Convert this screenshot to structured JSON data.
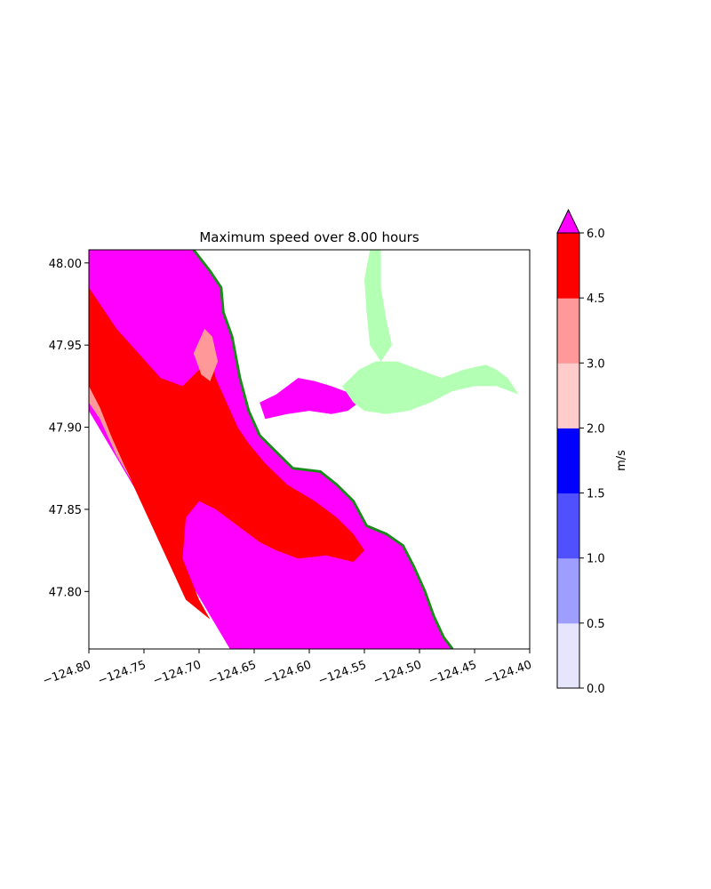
{
  "chart_data": {
    "type": "heatmap",
    "title": "Maximum speed over 8.00 hours",
    "xlim": [
      -124.8,
      -124.4
    ],
    "ylim": [
      47.765,
      48.008
    ],
    "x_ticks": [
      -124.8,
      -124.75,
      -124.7,
      -124.65,
      -124.6,
      -124.55,
      -124.5,
      -124.45,
      -124.4
    ],
    "x_tick_labels": [
      "−124.80",
      "−124.75",
      "−124.70",
      "−124.65",
      "−124.60",
      "−124.55",
      "−124.50",
      "−124.45",
      "−124.40"
    ],
    "y_ticks": [
      47.8,
      47.85,
      47.9,
      47.95,
      48.0
    ],
    "y_tick_labels": [
      "47.80",
      "47.85",
      "47.90",
      "47.95",
      "48.00"
    ],
    "colorbar": {
      "label": "m/s",
      "levels": [
        0.0,
        0.5,
        1.0,
        1.5,
        2.0,
        3.0,
        4.5,
        6.0
      ],
      "level_labels": [
        "0.0",
        "0.5",
        "1.0",
        "1.5",
        "2.0",
        "3.0",
        "4.5",
        "6.0"
      ],
      "colors": [
        "#e5e5fb",
        "#9e9eff",
        "#5050ff",
        "#0000ff",
        "#ffcccc",
        "#ff9999",
        "#ff0000"
      ],
      "extend_max_color": "#ff00ff",
      "extend": "max"
    },
    "regions": [
      {
        "name": "speed > 6.0 (offshore)",
        "color": "#ff00ff",
        "polygon": [
          [
            -124.8,
            48.008
          ],
          [
            -124.745,
            48.008
          ],
          [
            -124.705,
            48.008
          ],
          [
            -124.69,
            47.995
          ],
          [
            -124.68,
            47.985
          ],
          [
            -124.678,
            47.97
          ],
          [
            -124.67,
            47.955
          ],
          [
            -124.663,
            47.93
          ],
          [
            -124.655,
            47.91
          ],
          [
            -124.645,
            47.895
          ],
          [
            -124.63,
            47.885
          ],
          [
            -124.615,
            47.875
          ],
          [
            -124.59,
            47.873
          ],
          [
            -124.575,
            47.865
          ],
          [
            -124.56,
            47.855
          ],
          [
            -124.548,
            47.84
          ],
          [
            -124.53,
            47.835
          ],
          [
            -124.515,
            47.828
          ],
          [
            -124.505,
            47.815
          ],
          [
            -124.495,
            47.8
          ],
          [
            -124.487,
            47.785
          ],
          [
            -124.478,
            47.772
          ],
          [
            -124.47,
            47.765
          ],
          [
            -124.672,
            47.765
          ],
          [
            -124.8,
            47.91
          ]
        ]
      },
      {
        "name": "speed 4.5-6.0 band",
        "color": "#ff0000",
        "polygon": [
          [
            -124.8,
            47.985
          ],
          [
            -124.775,
            47.96
          ],
          [
            -124.755,
            47.945
          ],
          [
            -124.735,
            47.93
          ],
          [
            -124.715,
            47.925
          ],
          [
            -124.7,
            47.935
          ],
          [
            -124.69,
            47.945
          ],
          [
            -124.685,
            47.93
          ],
          [
            -124.675,
            47.915
          ],
          [
            -124.665,
            47.9
          ],
          [
            -124.655,
            47.89
          ],
          [
            -124.64,
            47.878
          ],
          [
            -124.62,
            47.865
          ],
          [
            -124.595,
            47.855
          ],
          [
            -124.575,
            47.845
          ],
          [
            -124.56,
            47.835
          ],
          [
            -124.55,
            47.825
          ],
          [
            -124.56,
            47.818
          ],
          [
            -124.585,
            47.822
          ],
          [
            -124.61,
            47.82
          ],
          [
            -124.63,
            47.825
          ],
          [
            -124.645,
            47.83
          ],
          [
            -124.665,
            47.84
          ],
          [
            -124.685,
            47.85
          ],
          [
            -124.7,
            47.855
          ],
          [
            -124.712,
            47.845
          ],
          [
            -124.715,
            47.82
          ],
          [
            -124.7,
            47.795
          ],
          [
            -124.69,
            47.783
          ],
          [
            -124.712,
            47.795
          ],
          [
            -124.76,
            47.865
          ],
          [
            -124.8,
            47.92
          ]
        ]
      },
      {
        "name": "speed 3.0-4.5 strip",
        "color": "#ff9999",
        "polygon": [
          [
            -124.8,
            47.925
          ],
          [
            -124.79,
            47.912
          ],
          [
            -124.78,
            47.895
          ],
          [
            -124.768,
            47.877
          ],
          [
            -124.76,
            47.866
          ],
          [
            -124.775,
            47.883
          ],
          [
            -124.79,
            47.905
          ],
          [
            -124.8,
            47.915
          ]
        ]
      },
      {
        "name": "speed 3.0-4.5 patch",
        "color": "#ff9999",
        "polygon": [
          [
            -124.705,
            47.945
          ],
          [
            -124.695,
            47.96
          ],
          [
            -124.688,
            47.955
          ],
          [
            -124.683,
            47.94
          ],
          [
            -124.69,
            47.928
          ],
          [
            -124.698,
            47.932
          ]
        ]
      },
      {
        "name": "speed > 6.0 bay channel",
        "color": "#ff00ff",
        "polygon": [
          [
            -124.645,
            47.915
          ],
          [
            -124.63,
            47.92
          ],
          [
            -124.61,
            47.93
          ],
          [
            -124.595,
            47.928
          ],
          [
            -124.58,
            47.925
          ],
          [
            -124.56,
            47.92
          ],
          [
            -124.555,
            47.915
          ],
          [
            -124.565,
            47.91
          ],
          [
            -124.58,
            47.908
          ],
          [
            -124.6,
            47.91
          ],
          [
            -124.62,
            47.908
          ],
          [
            -124.64,
            47.905
          ]
        ]
      },
      {
        "name": "speed < 0.5 inland bay",
        "color": "#b3ffb3",
        "polygon": [
          [
            -124.57,
            47.925
          ],
          [
            -124.555,
            47.935
          ],
          [
            -124.54,
            47.94
          ],
          [
            -124.52,
            47.94
          ],
          [
            -124.5,
            47.935
          ],
          [
            -124.48,
            47.93
          ],
          [
            -124.46,
            47.935
          ],
          [
            -124.44,
            47.938
          ],
          [
            -124.43,
            47.935
          ],
          [
            -124.42,
            47.93
          ],
          [
            -124.41,
            47.92
          ],
          [
            -124.43,
            47.925
          ],
          [
            -124.45,
            47.925
          ],
          [
            -124.47,
            47.922
          ],
          [
            -124.49,
            47.915
          ],
          [
            -124.51,
            47.91
          ],
          [
            -124.53,
            47.908
          ],
          [
            -124.55,
            47.91
          ],
          [
            -124.56,
            47.915
          ]
        ]
      },
      {
        "name": "speed < 0.5 northern inlet",
        "color": "#b3ffb3",
        "polygon": [
          [
            -124.545,
            48.008
          ],
          [
            -124.535,
            48.008
          ],
          [
            -124.535,
            47.985
          ],
          [
            -124.53,
            47.965
          ],
          [
            -124.525,
            47.95
          ],
          [
            -124.535,
            47.94
          ],
          [
            -124.545,
            47.95
          ],
          [
            -124.548,
            47.97
          ],
          [
            -124.55,
            47.99
          ]
        ]
      }
    ],
    "coastline": [
      [
        -124.705,
        48.008
      ],
      [
        -124.69,
        47.995
      ],
      [
        -124.68,
        47.985
      ],
      [
        -124.678,
        47.97
      ],
      [
        -124.67,
        47.955
      ],
      [
        -124.663,
        47.93
      ],
      [
        -124.655,
        47.91
      ],
      [
        -124.645,
        47.895
      ],
      [
        -124.63,
        47.885
      ],
      [
        -124.615,
        47.875
      ],
      [
        -124.59,
        47.873
      ],
      [
        -124.575,
        47.865
      ],
      [
        -124.56,
        47.855
      ],
      [
        -124.548,
        47.84
      ],
      [
        -124.53,
        47.835
      ],
      [
        -124.515,
        47.828
      ],
      [
        -124.505,
        47.815
      ],
      [
        -124.495,
        47.8
      ],
      [
        -124.487,
        47.785
      ],
      [
        -124.478,
        47.772
      ],
      [
        -124.47,
        47.765
      ]
    ],
    "coastline_color": "#1a8a1a"
  }
}
